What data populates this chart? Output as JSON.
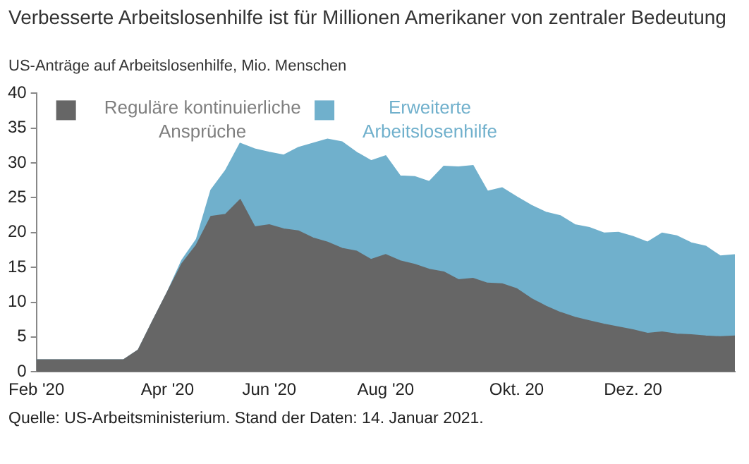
{
  "chart_data": {
    "type": "area",
    "title": "Verbesserte Arbeitslosenhilfe ist für Millionen Amerikaner von zentraler Bedeutung",
    "subtitle": "US-Anträge auf Arbeitslosenhilfe, Mio. Menschen",
    "annotations": [
      "Quelle: US-Arbeitsministerium. Stand der Daten: 14. Januar 2021."
    ],
    "categories": [
      "Feb '20",
      null,
      null,
      null,
      null,
      null,
      null,
      null,
      null,
      "Apr '20",
      null,
      null,
      null,
      null,
      null,
      null,
      "Jun '20",
      null,
      null,
      null,
      null,
      null,
      null,
      null,
      "Aug '20",
      null,
      null,
      null,
      null,
      null,
      null,
      null,
      null,
      "Okt. 20",
      null,
      null,
      null,
      null,
      null,
      null,
      null,
      "Dez. 20",
      null,
      null,
      null,
      null,
      null,
      null,
      null
    ],
    "stacked": true,
    "ylim": [
      0,
      40
    ],
    "yticks": [
      0,
      5,
      10,
      15,
      20,
      25,
      30,
      35,
      40
    ],
    "grid": false,
    "legend": "top",
    "series": [
      {
        "name": "Reguläre kontinuierliche Ansprüche",
        "color": "#666666",
        "values": [
          1.7,
          1.7,
          1.7,
          1.7,
          1.7,
          1.7,
          1.7,
          3.1,
          7.3,
          11.4,
          15.5,
          18.2,
          22.3,
          22.6,
          24.7,
          20.8,
          21.1,
          20.5,
          20.2,
          19.2,
          18.6,
          17.7,
          17.3,
          16.1,
          16.8,
          15.9,
          15.4,
          14.7,
          14.3,
          13.2,
          13.4,
          12.7,
          12.6,
          11.9,
          10.5,
          9.4,
          8.5,
          7.8,
          7.3,
          6.8,
          6.4,
          6.0,
          5.5,
          5.7,
          5.4,
          5.3,
          5.1,
          5.0,
          5.1
        ]
      },
      {
        "name": "Erweiterte Arbeitslosenhilfe",
        "color": "#70b0cc",
        "values": [
          0,
          0,
          0,
          0,
          0,
          0,
          0,
          0,
          0,
          0,
          0.5,
          0.8,
          3.8,
          6.3,
          8.1,
          11.2,
          10.4,
          10.6,
          12.0,
          13.6,
          14.8,
          15.3,
          14.2,
          14.2,
          14.2,
          12.2,
          12.6,
          12.6,
          15.2,
          16.2,
          16.2,
          13.2,
          13.8,
          13.2,
          13.4,
          13.5,
          13.9,
          13.3,
          13.4,
          13.1,
          13.6,
          13.4,
          13.1,
          14.2,
          14.1,
          13.2,
          12.9,
          11.6,
          11.7
        ]
      }
    ]
  }
}
